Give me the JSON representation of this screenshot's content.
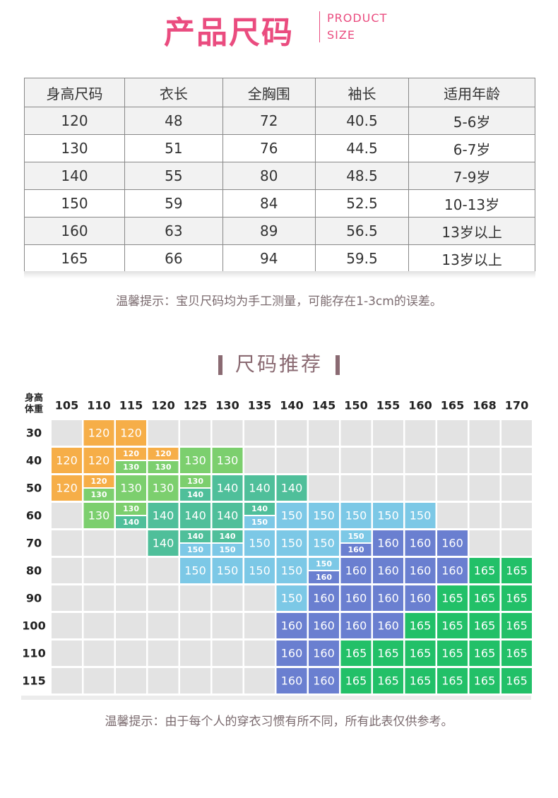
{
  "header": {
    "title": "产品尺码",
    "subtitle": [
      "PRODUCT",
      "SIZE"
    ]
  },
  "size_table": {
    "headers": [
      "身高尺码",
      "衣长",
      "全胸围",
      "袖长",
      "适用年龄"
    ],
    "rows": [
      [
        "120",
        "48",
        "72",
        "40.5",
        "5-6岁"
      ],
      [
        "130",
        "51",
        "76",
        "44.5",
        "6-7岁"
      ],
      [
        "140",
        "55",
        "80",
        "48.5",
        "7-9岁"
      ],
      [
        "150",
        "59",
        "84",
        "52.5",
        "10-13岁"
      ],
      [
        "160",
        "63",
        "89",
        "56.5",
        "13岁以上"
      ],
      [
        "165",
        "66",
        "94",
        "59.5",
        "13岁以上"
      ]
    ]
  },
  "note1": "温馨提示：宝贝尺码均为手工测量，可能存在1-3cm的误差。",
  "section_title": "尺码推荐",
  "grid": {
    "corner": [
      "身高",
      "体重"
    ],
    "heights": [
      "105",
      "110",
      "115",
      "120",
      "125",
      "130",
      "135",
      "140",
      "145",
      "150",
      "155",
      "160",
      "165",
      "168",
      "170"
    ],
    "weights": [
      "30",
      "40",
      "50",
      "60",
      "70",
      "80",
      "90",
      "100",
      "110",
      "115"
    ],
    "colors": {
      "120": "#f6ae48",
      "130": "#7ccf6e",
      "140": "#4fbf9a",
      "150": "#7cc8e6",
      "160": "#6a7fd0",
      "165": "#22c068"
    },
    "cells": [
      [
        null,
        [
          "120"
        ],
        [
          "120"
        ],
        null,
        null,
        null,
        null,
        null,
        null,
        null,
        null,
        null,
        null,
        null,
        null
      ],
      [
        [
          "120"
        ],
        [
          "120"
        ],
        [
          "120",
          "130"
        ],
        [
          "120",
          "130"
        ],
        [
          "130"
        ],
        [
          "130"
        ],
        null,
        null,
        null,
        null,
        null,
        null,
        null,
        null,
        null
      ],
      [
        [
          "120"
        ],
        [
          "120",
          "130"
        ],
        [
          "130"
        ],
        [
          "130"
        ],
        [
          "130",
          "140"
        ],
        [
          "140"
        ],
        [
          "140"
        ],
        [
          "140"
        ],
        null,
        null,
        null,
        null,
        null,
        null,
        null
      ],
      [
        null,
        [
          "130"
        ],
        [
          "130",
          "140"
        ],
        [
          "140"
        ],
        [
          "140"
        ],
        [
          "140"
        ],
        [
          "140",
          "150"
        ],
        [
          "150"
        ],
        [
          "150"
        ],
        [
          "150"
        ],
        [
          "150"
        ],
        [
          "150"
        ],
        null,
        null,
        null
      ],
      [
        null,
        null,
        null,
        [
          "140"
        ],
        [
          "140",
          "150"
        ],
        [
          "140",
          "150"
        ],
        [
          "150"
        ],
        [
          "150"
        ],
        [
          "150"
        ],
        [
          "150",
          "160"
        ],
        [
          "160"
        ],
        [
          "160"
        ],
        [
          "160"
        ],
        null,
        null
      ],
      [
        null,
        null,
        null,
        null,
        [
          "150"
        ],
        [
          "150"
        ],
        [
          "150"
        ],
        [
          "150"
        ],
        [
          "150",
          "160"
        ],
        [
          "160"
        ],
        [
          "160"
        ],
        [
          "160"
        ],
        [
          "160"
        ],
        [
          "165"
        ],
        [
          "165"
        ]
      ],
      [
        null,
        null,
        null,
        null,
        null,
        null,
        null,
        [
          "150"
        ],
        [
          "160"
        ],
        [
          "160"
        ],
        [
          "160"
        ],
        [
          "160"
        ],
        [
          "165"
        ],
        [
          "165"
        ],
        [
          "165"
        ]
      ],
      [
        null,
        null,
        null,
        null,
        null,
        null,
        null,
        [
          "160"
        ],
        [
          "160"
        ],
        [
          "160"
        ],
        [
          "160"
        ],
        [
          "165"
        ],
        [
          "165"
        ],
        [
          "165"
        ],
        [
          "165"
        ]
      ],
      [
        null,
        null,
        null,
        null,
        null,
        null,
        null,
        [
          "160"
        ],
        [
          "160"
        ],
        [
          "165"
        ],
        [
          "165"
        ],
        [
          "165"
        ],
        [
          "165"
        ],
        [
          "165"
        ],
        [
          "165"
        ]
      ],
      [
        null,
        null,
        null,
        null,
        null,
        null,
        null,
        [
          "160"
        ],
        [
          "160"
        ],
        [
          "165"
        ],
        [
          "165"
        ],
        [
          "165"
        ],
        [
          "165"
        ],
        [
          "165"
        ],
        [
          "165"
        ]
      ]
    ]
  },
  "note2": "温馨提示：由于每个人的穿衣习惯有所不同，所有此表仅供参考。"
}
